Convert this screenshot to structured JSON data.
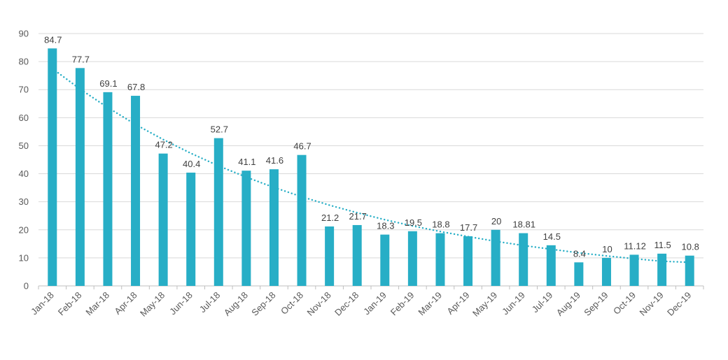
{
  "chart_data": {
    "type": "bar",
    "title": "",
    "xlabel": "",
    "ylabel": "",
    "ylim": [
      0,
      90
    ],
    "yticks": [
      0,
      10,
      20,
      30,
      40,
      50,
      60,
      70,
      80,
      90
    ],
    "grid": true,
    "legend": "none",
    "categories": [
      "Jan-18",
      "Feb-18",
      "Mar-18",
      "Apr-18",
      "May-18",
      "Jun-18",
      "Jul-18",
      "Aug-18",
      "Sep-18",
      "Oct-18",
      "Nov-18",
      "Dec-18",
      "Jan-19",
      "Feb-19",
      "Mar-19",
      "Apr-19",
      "May-19",
      "Jun-19",
      "Jul-19",
      "Aug-19",
      "Sep-19",
      "Oct-19",
      "Nov-19",
      "Dec-19"
    ],
    "values": [
      84.7,
      77.7,
      69.1,
      67.8,
      47.2,
      40.4,
      52.7,
      41.1,
      41.6,
      46.7,
      21.2,
      21.7,
      18.3,
      19.5,
      18.8,
      17.7,
      20,
      18.81,
      14.5,
      8.4,
      10,
      11.12,
      11.5,
      10.8
    ],
    "value_labels": [
      "84.7",
      "77.7",
      "69.1",
      "67.8",
      "47.2",
      "40.4",
      "52.7",
      "41.1",
      "41.6",
      "46.7",
      "21.2",
      "21.7",
      "18.3",
      "19.5",
      "18.8",
      "17.7",
      "20",
      "18.81",
      "14.5",
      "8.4",
      "10",
      "11.12",
      "11.5",
      "10.8"
    ],
    "trendline": {
      "type": "exponential",
      "values": [
        77.5,
        70.2,
        63.6,
        57.6,
        52.2,
        47.3,
        42.8,
        38.8,
        35.1,
        31.8,
        28.8,
        26.1,
        23.6,
        21.4,
        19.4,
        17.6,
        15.9,
        14.4,
        13.1,
        11.8,
        10.7,
        9.7,
        8.8,
        8.4
      ]
    },
    "colors": {
      "bar": "#27AEC6",
      "trend": "#27AEC6"
    }
  }
}
